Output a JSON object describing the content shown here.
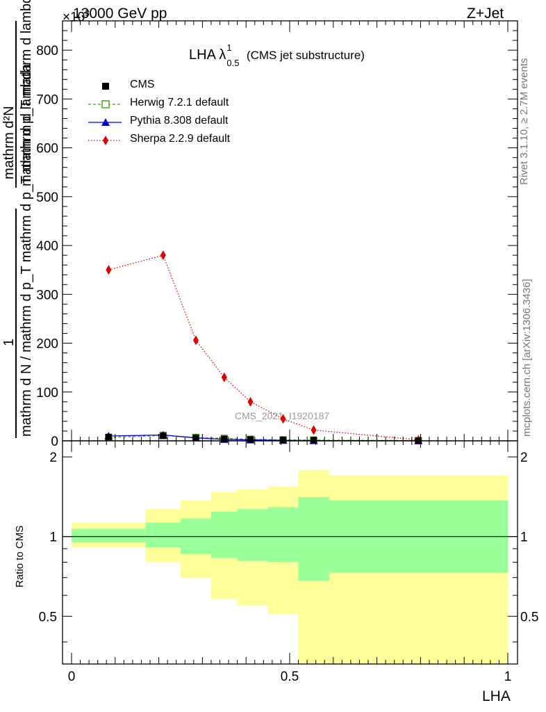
{
  "header": {
    "energy_label": "13000 GeV pp",
    "process_label": "Z+Jet",
    "exponent_label": "×10",
    "exponent_power": "3"
  },
  "plot_title": {
    "main": "LHA λ",
    "sup": "1",
    "sub": "0.5",
    "suffix": "(CMS jet substructure)"
  },
  "watermark": "CMS_2021_I1920187",
  "side_labels": {
    "rivet": "Rivet 3.1.10, ≥ 2.7M events",
    "mcplots": "mcplots.cern.ch [arXiv:1306.3436]"
  },
  "axes": {
    "main_ylabel_numerator": "mathrm d²N",
    "main_ylabel_one": "1",
    "main_ylabel_den_top": "mathrm d p_T mathrm d lambda",
    "main_ylabel_den_bottom": "mathrm d N / mathrm d p_T mathrm d p_T mathrm d lambda",
    "ratio_ylabel": "Ratio to CMS",
    "xlabel": "LHA"
  },
  "legend": [
    {
      "name": "CMS",
      "color": "#000000",
      "marker": "square-filled",
      "line": "none"
    },
    {
      "name": "Herwig 7.2.1 default",
      "color": "#4c9a1a",
      "marker": "square-open",
      "line": "dashed"
    },
    {
      "name": "Pythia 8.308 default",
      "color": "#0000cc",
      "marker": "triangle",
      "line": "solid"
    },
    {
      "name": "Sherpa 2.2.9 default",
      "color": "#dd0000",
      "marker": "diamond",
      "line": "dotted"
    }
  ],
  "chart_data": [
    {
      "type": "line",
      "title": "",
      "xlabel": "LHA",
      "ylabel": "1/N dN/dλ (×10³)",
      "xlim": [
        0,
        1
      ],
      "ylim": [
        0,
        860
      ],
      "yticks": [
        0,
        100,
        200,
        300,
        400,
        500,
        600,
        700,
        800
      ],
      "xticks": [
        "0",
        "0.5",
        "1"
      ],
      "series": [
        {
          "name": "CMS",
          "x": [
            0.085,
            0.21,
            0.285,
            0.35,
            0.41,
            0.485,
            0.555,
            0.795
          ],
          "y": [
            8,
            10,
            6,
            4,
            3,
            2,
            1.5,
            0.5
          ]
        },
        {
          "name": "Herwig 7.2.1 default",
          "x": [
            0.085,
            0.21,
            0.285,
            0.35,
            0.41,
            0.485,
            0.555,
            0.795
          ],
          "y": [
            7,
            11,
            7,
            5,
            3,
            2,
            1.5,
            0.5
          ]
        },
        {
          "name": "Pythia 8.308 default",
          "x": [
            0.085,
            0.21,
            0.285,
            0.35,
            0.41,
            0.485,
            0.555,
            0.795
          ],
          "y": [
            10,
            12,
            6,
            3,
            2,
            1,
            0.5,
            0.2
          ]
        },
        {
          "name": "Sherpa 2.2.9 default",
          "x": [
            0.085,
            0.21,
            0.285,
            0.35,
            0.41,
            0.485,
            0.555,
            0.795
          ],
          "y": [
            350,
            380,
            206,
            130,
            80,
            45,
            22,
            2
          ]
        }
      ]
    },
    {
      "type": "area",
      "title": "",
      "xlabel": "LHA",
      "ylabel": "Ratio to CMS",
      "xlim": [
        0,
        1
      ],
      "ylim": [
        0.33,
        2.3
      ],
      "yticks": [
        "0.5",
        "1",
        "2"
      ],
      "reference_line": 1,
      "bins": [
        {
          "lo": 0.0,
          "hi": 0.17,
          "stat_lo": 0.95,
          "stat_hi": 1.07,
          "tot_lo": 0.91,
          "tot_hi": 1.13
        },
        {
          "lo": 0.17,
          "hi": 0.25,
          "stat_lo": 0.91,
          "stat_hi": 1.13,
          "tot_lo": 0.8,
          "tot_hi": 1.27
        },
        {
          "lo": 0.25,
          "hi": 0.32,
          "stat_lo": 0.86,
          "stat_hi": 1.17,
          "tot_lo": 0.7,
          "tot_hi": 1.37
        },
        {
          "lo": 0.32,
          "hi": 0.38,
          "stat_lo": 0.83,
          "stat_hi": 1.24,
          "tot_lo": 0.58,
          "tot_hi": 1.47
        },
        {
          "lo": 0.38,
          "hi": 0.45,
          "stat_lo": 0.81,
          "stat_hi": 1.27,
          "tot_lo": 0.55,
          "tot_hi": 1.51
        },
        {
          "lo": 0.45,
          "hi": 0.52,
          "stat_lo": 0.8,
          "stat_hi": 1.29,
          "tot_lo": 0.51,
          "tot_hi": 1.55
        },
        {
          "lo": 0.52,
          "hi": 0.59,
          "stat_lo": 0.68,
          "stat_hi": 1.41,
          "tot_lo": 0.33,
          "tot_hi": 1.78
        },
        {
          "lo": 0.59,
          "hi": 1.0,
          "stat_lo": 0.73,
          "stat_hi": 1.37,
          "tot_lo": 0.33,
          "tot_hi": 1.7
        }
      ],
      "colors": {
        "stat": "#99ff99",
        "total": "#ffff99"
      }
    }
  ]
}
